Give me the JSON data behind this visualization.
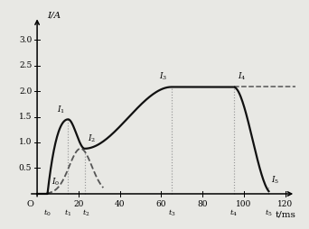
{
  "xlabel": "t/ms",
  "ylabel": "I/A",
  "xlim": [
    -6,
    127
  ],
  "ylim": [
    -0.15,
    3.55
  ],
  "xticks": [
    20,
    40,
    60,
    80,
    100,
    120
  ],
  "yticks": [
    0.5,
    1.0,
    1.5,
    2.0,
    2.5,
    3.0
  ],
  "bg_color": "#e8e8e4",
  "feature_points": {
    "t0": 5,
    "t1": 15,
    "t2": 23,
    "t3": 65,
    "t4": 95,
    "t5": 112
  },
  "I_values": {
    "I0": 0.0,
    "I1": 1.45,
    "I2": 0.88,
    "I3": 2.08,
    "I4": 2.08,
    "I5": 0.05
  },
  "dashed_level": 2.08,
  "solid_color": "#111111",
  "dashed_color": "#555555",
  "dotted_color": "#999999"
}
